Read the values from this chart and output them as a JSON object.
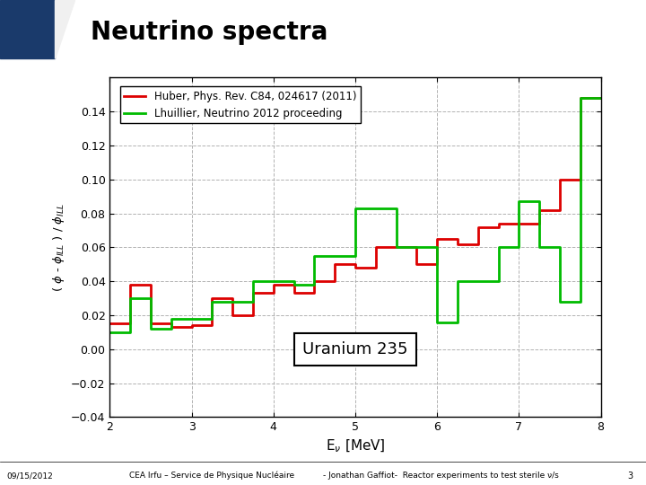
{
  "title": "Neutrino spectra",
  "xlabel": "E$_\\nu$ [MeV]",
  "ylabel": "( $\\phi$ - $\\phi_{ILL}$ ) / $\\phi_{ILL}$",
  "xlim": [
    2,
    8
  ],
  "ylim": [
    -0.04,
    0.16
  ],
  "yticks": [
    -0.04,
    -0.02,
    0,
    0.02,
    0.04,
    0.06,
    0.08,
    0.1,
    0.12,
    0.14
  ],
  "xticks": [
    2,
    3,
    4,
    5,
    6,
    7,
    8
  ],
  "annotation": "Uranium 235",
  "legend1": "Huber, Phys. Rev. C84, 024617 (2011)",
  "legend2": "Lhuillier, Neutrino 2012 proceeding",
  "footer_left": "09/15/2012",
  "footer_center": "CEA Irfu – Service de Physique Nucléaire",
  "footer_right": "- Jonathan Gaffiot-  Reactor experiments to test sterile ν/s",
  "footer_page": "3",
  "huber_x": [
    2.0,
    2.25,
    2.5,
    2.75,
    3.0,
    3.25,
    3.5,
    3.75,
    4.0,
    4.25,
    4.5,
    4.75,
    5.0,
    5.25,
    5.5,
    5.75,
    6.0,
    6.25,
    6.5,
    6.75,
    7.0,
    7.25,
    7.5,
    7.75,
    8.0
  ],
  "huber_y": [
    0.015,
    0.038,
    0.015,
    0.013,
    0.014,
    0.03,
    0.02,
    0.033,
    0.038,
    0.033,
    0.04,
    0.05,
    0.048,
    0.06,
    0.06,
    0.05,
    0.065,
    0.062,
    0.072,
    0.074,
    0.074,
    0.082,
    0.1,
    0.148,
    0.148
  ],
  "lhuillier_x": [
    2.0,
    2.25,
    2.5,
    2.75,
    3.0,
    3.25,
    3.5,
    3.75,
    4.0,
    4.25,
    4.5,
    4.75,
    5.0,
    5.25,
    5.5,
    5.75,
    6.0,
    6.25,
    6.5,
    6.75,
    7.0,
    7.25,
    7.5,
    7.75,
    8.0
  ],
  "lhuillier_y": [
    0.01,
    0.03,
    0.012,
    0.018,
    0.018,
    0.028,
    0.028,
    0.04,
    0.04,
    0.038,
    0.055,
    0.055,
    0.083,
    0.083,
    0.06,
    0.06,
    0.016,
    0.04,
    0.04,
    0.06,
    0.087,
    0.06,
    0.028,
    0.148,
    0.148
  ],
  "color_huber": "#dd0000",
  "color_lhuillier": "#00bb00",
  "grid_color": "#aaaaaa",
  "header_bg": "#f0f0f0",
  "header_blue": "#1a3a6b",
  "cea_red": "#cc0000"
}
